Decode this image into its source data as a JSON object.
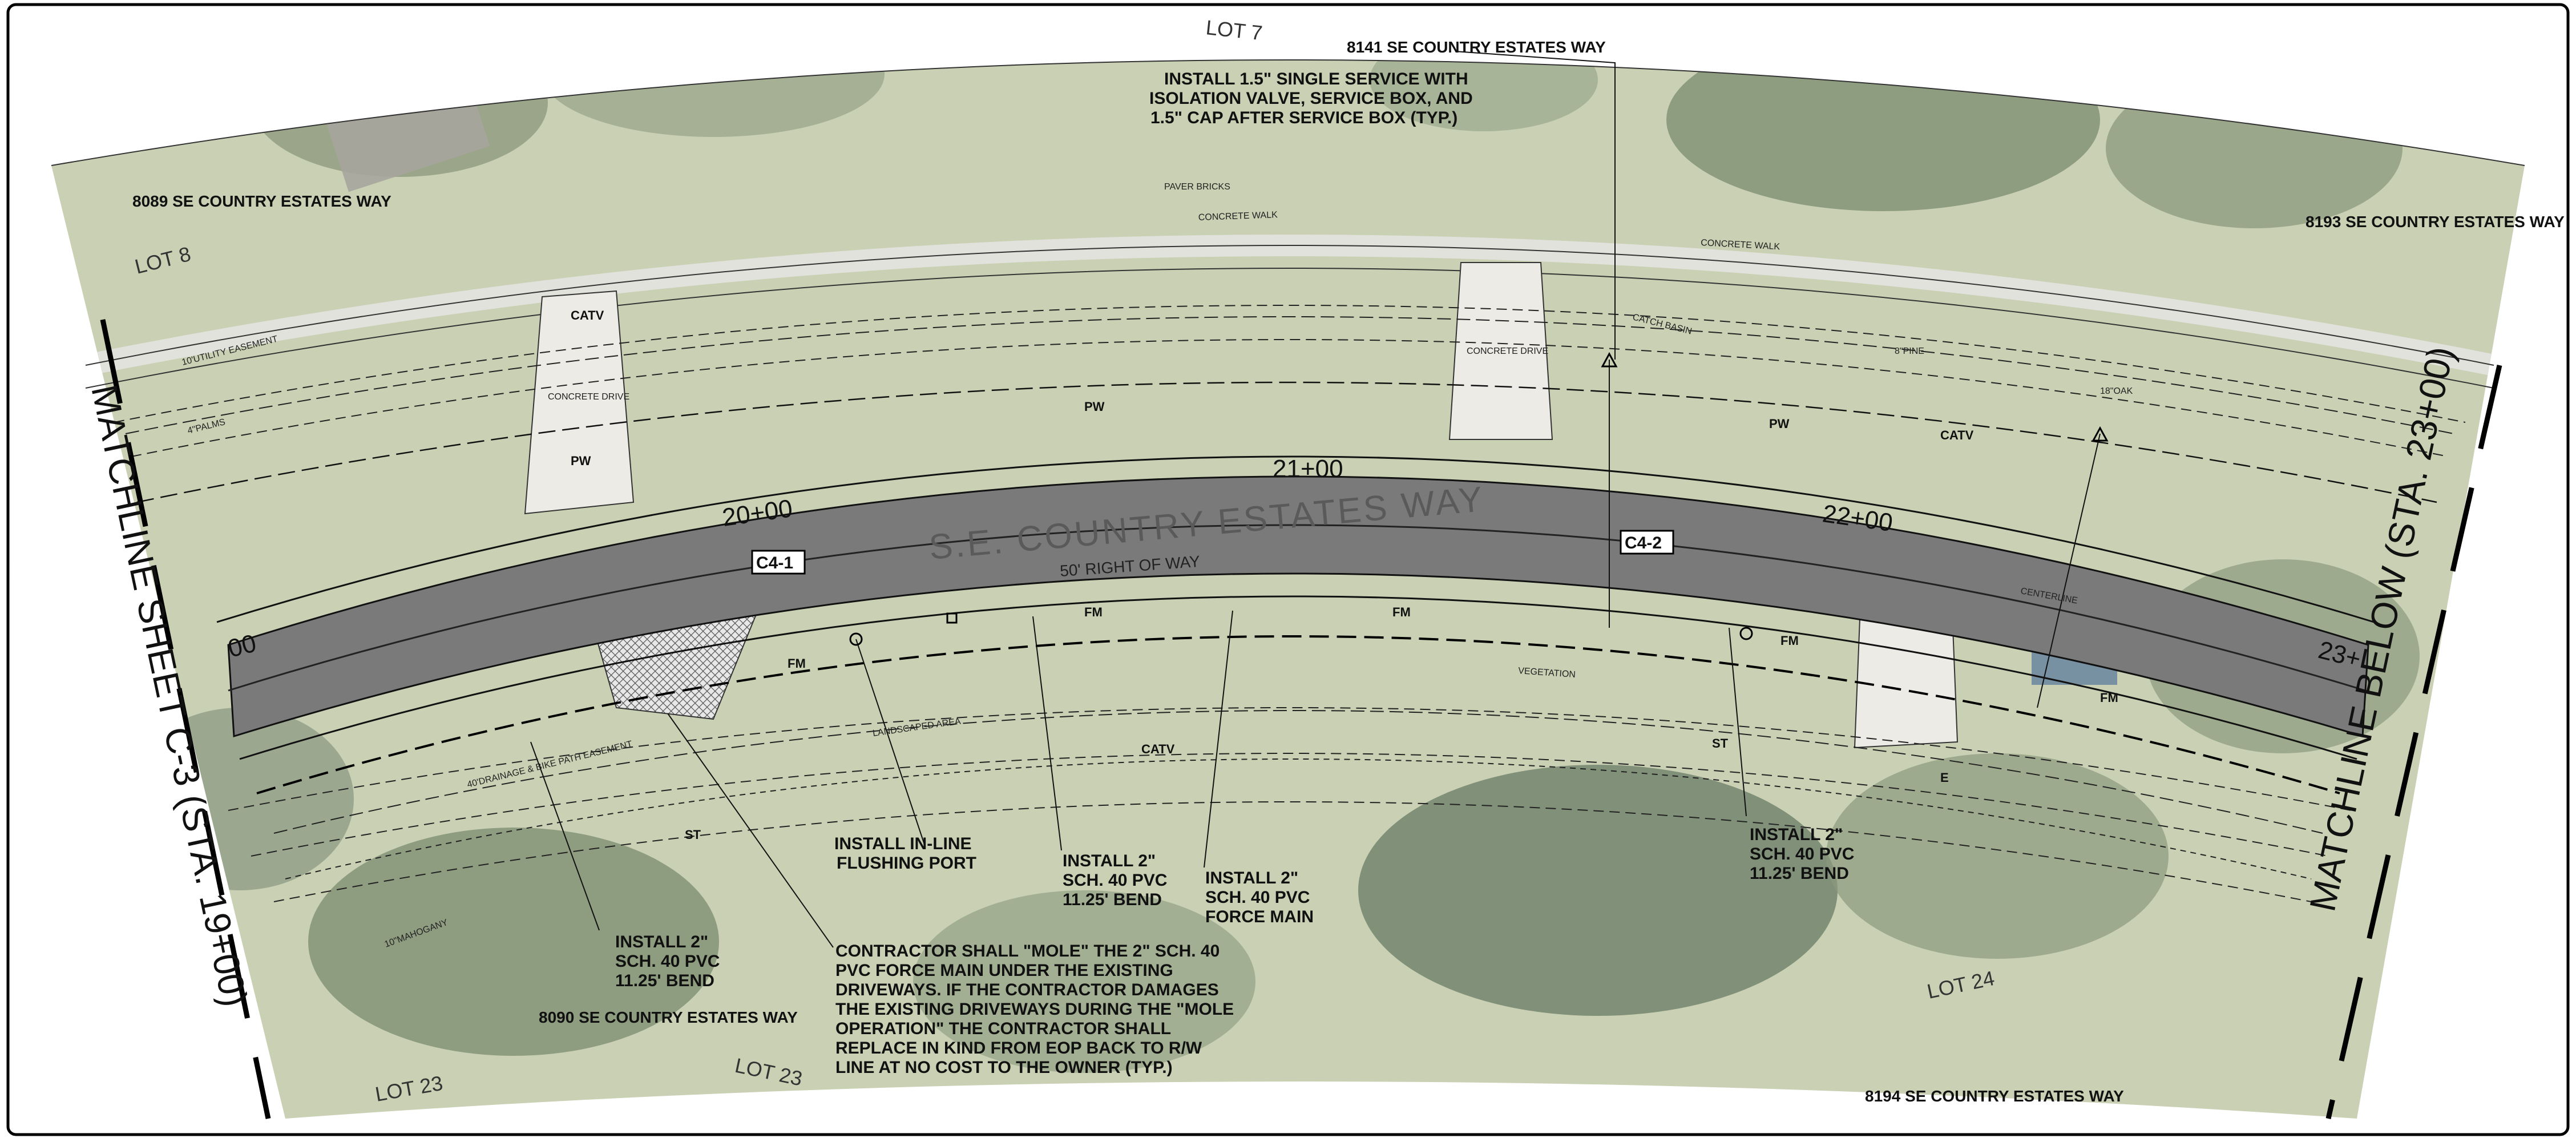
{
  "street": {
    "name": "S.E. COUNTRY ESTATES WAY",
    "right_of_way": "50' RIGHT OF WAY"
  },
  "stations": [
    "20+00",
    "21+00",
    "22+00"
  ],
  "station_edges": {
    "left": "00",
    "right": "23+"
  },
  "matchlines": {
    "left": "MATCHLINE SHEET C-3 (STA. 19+00)",
    "right": "MATCHLINE BELOW (STA. 23+00)"
  },
  "addresses": {
    "a8089": "8089 SE COUNTRY ESTATES WAY",
    "a8141": "8141 SE COUNTRY ESTATES WAY",
    "a8193": "8193 SE COUNTRY ESTATES WAY",
    "a8090": "8090 SE COUNTRY ESTATES WAY",
    "a8194": "8194 SE COUNTRY ESTATES WAY"
  },
  "lots": {
    "lot7": "LOT 7",
    "lot8": "LOT 8",
    "lot23a": "LOT 23",
    "lot23b": "LOT 23",
    "lot24": "LOT 24"
  },
  "callouts": {
    "c41": "C4-1",
    "c42": "C4-2"
  },
  "notes": {
    "service": [
      "INSTALL 1.5\" SINGLE SERVICE WITH",
      "ISOLATION VALVE, SERVICE BOX, AND",
      "1.5\" CAP AFTER SERVICE BOX (TYP.)"
    ],
    "flushing": [
      "INSTALL IN-LINE",
      "FLUSHING PORT"
    ],
    "bend_a": [
      "INSTALL 2\"",
      "SCH. 40 PVC",
      "11.25' BEND"
    ],
    "force_main": [
      "INSTALL 2\"",
      "SCH. 40 PVC",
      "FORCE MAIN"
    ],
    "bend_left": [
      "INSTALL 2\"",
      "SCH. 40 PVC",
      "11.25' BEND"
    ],
    "bend_right": [
      "INSTALL 2\"",
      "SCH. 40 PVC",
      "11.25' BEND"
    ],
    "mole": [
      "CONTRACTOR SHALL \"MOLE\" THE 2\" SCH. 40",
      "PVC FORCE MAIN UNDER THE EXISTING",
      "DRIVEWAYS. IF THE CONTRACTOR DAMAGES",
      "THE EXISTING DRIVEWAYS DURING THE \"MOLE",
      "OPERATION\" THE CONTRACTOR SHALL",
      "REPLACE IN KIND FROM EOP BACK TO R/W",
      "LINE AT NO COST TO THE OWNER (TYP.)"
    ]
  },
  "site_labels": {
    "concrete_walk": "CONCRETE WALK",
    "concrete_walk2": "CONCRETE WALK",
    "concrete_drive_l": "CONCRETE DRIVE",
    "concrete_drive_c": "CONCRETE DRIVE",
    "paver_bricks": "PAVER BRICKS",
    "catch_basin": "CATCH BASIN",
    "utility_easement": "10'UTILITY EASEMENT",
    "drainage_easement": "40'DRAINAGE & BIKE PATH EASEMENT",
    "landscaped_area": "LANDSCAPED AREA",
    "vegetation": "VEGETATION",
    "centerline": "CENTERLINE",
    "mahogany": "10\"MAHOGANY",
    "oak": "18\"OAK",
    "pine": "8\"PINE",
    "palms": "4\"PALMS"
  },
  "utility_codes": {
    "fm": "FM",
    "pw": "PW",
    "catv": "CATV",
    "st": "ST",
    "e": "E"
  },
  "colors": {
    "pavement": "#7a7a7a",
    "lawn": "#c9d0b3",
    "trees": "#7f8f73",
    "paper": "#ffffff",
    "ink": "#111111"
  }
}
